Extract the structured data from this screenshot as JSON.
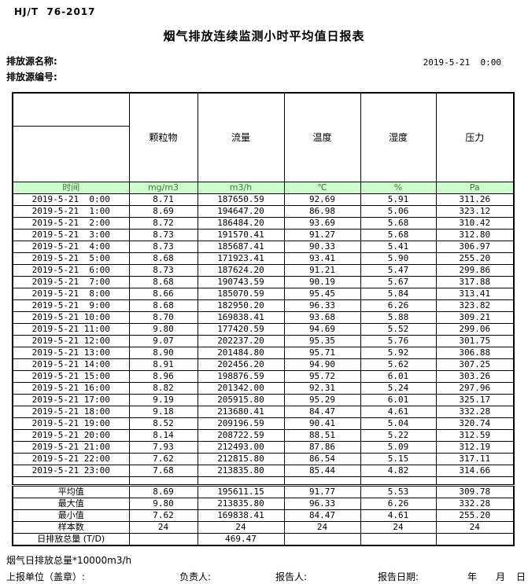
{
  "header": {
    "standard_no": "HJ/T  76-2017",
    "title": "烟气排放连续监测小时平均值日报表",
    "source_name_label": "排放源名称:",
    "source_code_label": "排放源编号:",
    "datetime": "2019-5-21  0:00"
  },
  "table": {
    "time_label": "时间",
    "columns": [
      "颗粒物",
      "流量",
      "温度",
      "湿度",
      "压力"
    ],
    "units": [
      "mg/m3",
      "m3/h",
      "℃",
      "%",
      "Pa"
    ],
    "rows": [
      {
        "time": "2019-5-21  0:00",
        "values": [
          "8.71",
          "187650.59",
          "92.69",
          "5.91",
          "311.26"
        ]
      },
      {
        "time": "2019-5-21  1:00",
        "values": [
          "8.69",
          "194647.20",
          "86.98",
          "5.06",
          "323.12"
        ]
      },
      {
        "time": "2019-5-21  2:00",
        "values": [
          "8.72",
          "186484.20",
          "93.69",
          "5.68",
          "310.42"
        ]
      },
      {
        "time": "2019-5-21  3:00",
        "values": [
          "8.73",
          "191570.41",
          "91.27",
          "5.68",
          "312.80"
        ]
      },
      {
        "time": "2019-5-21  4:00",
        "values": [
          "8.73",
          "185687.41",
          "90.33",
          "5.41",
          "306.97"
        ]
      },
      {
        "time": "2019-5-21  5:00",
        "values": [
          "8.68",
          "171923.41",
          "93.41",
          "5.90",
          "255.20"
        ]
      },
      {
        "time": "2019-5-21  6:00",
        "values": [
          "8.73",
          "187624.20",
          "91.21",
          "5.47",
          "299.86"
        ]
      },
      {
        "time": "2019-5-21  7:00",
        "values": [
          "8.68",
          "190743.59",
          "90.19",
          "5.67",
          "317.88"
        ]
      },
      {
        "time": "2019-5-21  8:00",
        "values": [
          "8.66",
          "185070.59",
          "95.45",
          "5.84",
          "313.41"
        ]
      },
      {
        "time": "2019-5-21  9:00",
        "values": [
          "8.68",
          "182950.20",
          "96.33",
          "6.26",
          "323.82"
        ]
      },
      {
        "time": "2019-5-21 10:00",
        "values": [
          "8.70",
          "169838.41",
          "93.68",
          "5.88",
          "309.21"
        ]
      },
      {
        "time": "2019-5-21 11:00",
        "values": [
          "9.80",
          "177420.59",
          "94.69",
          "5.52",
          "299.06"
        ]
      },
      {
        "time": "2019-5-21 12:00",
        "values": [
          "9.07",
          "202237.20",
          "95.35",
          "5.76",
          "301.75"
        ]
      },
      {
        "time": "2019-5-21 13:00",
        "values": [
          "8.90",
          "201484.80",
          "95.71",
          "5.92",
          "306.88"
        ]
      },
      {
        "time": "2019-5-21 14:00",
        "values": [
          "8.91",
          "202456.20",
          "94.90",
          "5.62",
          "307.25"
        ]
      },
      {
        "time": "2019-5-21 15:00",
        "values": [
          "8.96",
          "198876.59",
          "95.72",
          "6.01",
          "303.26"
        ]
      },
      {
        "time": "2019-5-21 16:00",
        "values": [
          "8.82",
          "201342.00",
          "92.31",
          "5.24",
          "297.96"
        ]
      },
      {
        "time": "2019-5-21 17:00",
        "values": [
          "9.19",
          "205915.80",
          "95.29",
          "6.01",
          "325.17"
        ]
      },
      {
        "time": "2019-5-21 18:00",
        "values": [
          "9.18",
          "213680.41",
          "84.47",
          "4.61",
          "332.28"
        ]
      },
      {
        "time": "2019-5-21 19:00",
        "values": [
          "8.52",
          "209196.59",
          "90.41",
          "5.04",
          "320.74"
        ]
      },
      {
        "time": "2019-5-21 20:00",
        "values": [
          "8.14",
          "208722.59",
          "88.51",
          "5.22",
          "312.59"
        ]
      },
      {
        "time": "2019-5-21 21:00",
        "values": [
          "7.93",
          "212493.00",
          "87.86",
          "5.09",
          "312.19"
        ]
      },
      {
        "time": "2019-5-21 22:00",
        "values": [
          "7.62",
          "212815.80",
          "86.54",
          "5.15",
          "317.11"
        ]
      },
      {
        "time": "2019-5-21 23:00",
        "values": [
          "7.68",
          "213835.80",
          "85.44",
          "4.82",
          "314.66"
        ]
      }
    ],
    "summary": [
      {
        "label": "平均值",
        "values": [
          "8.69",
          "195611.15",
          "91.77",
          "5.53",
          "309.78"
        ]
      },
      {
        "label": "最大值",
        "values": [
          "9.80",
          "213835.80",
          "96.33",
          "6.26",
          "332.28"
        ]
      },
      {
        "label": "最小值",
        "values": [
          "7.62",
          "169838.41",
          "84.47",
          "4.61",
          "255.20"
        ]
      },
      {
        "label": "样本数",
        "values": [
          "24",
          "24",
          "24",
          "24",
          "24"
        ]
      },
      {
        "label": "日排放总量 (T/D)",
        "values": [
          "",
          "469.47",
          "",
          "",
          ""
        ]
      }
    ]
  },
  "footer": {
    "note": "烟气日排放总量*10000m3/h",
    "report_unit_label": "上报单位（盖章）:",
    "responsible_label": "负责人:",
    "reporter_label": "报告人:",
    "report_date_label": "报告日期:",
    "year_label": "年",
    "month_label": "月",
    "day_label": "日"
  },
  "colors": {
    "header_green": "#ccffcc",
    "border": "#000000",
    "background": "#ffffff"
  }
}
